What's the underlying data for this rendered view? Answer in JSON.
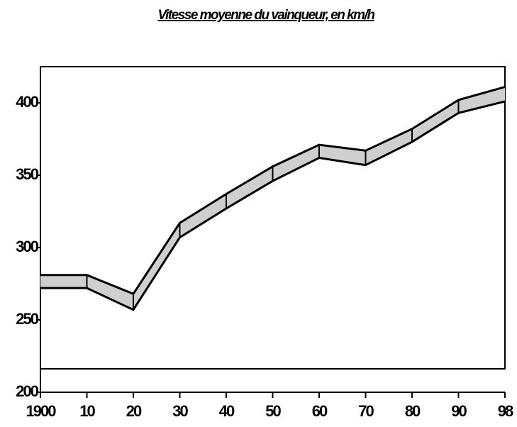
{
  "chart_data": {
    "type": "band",
    "title": "Vitesse moyenne du vainqueur, en km/h",
    "categories": [
      "1900",
      "10",
      "20",
      "30",
      "40",
      "50",
      "60",
      "70",
      "80",
      "90",
      "98"
    ],
    "series": [
      {
        "color": "#cfcfcf",
        "values": [
          281,
          281,
          268,
          317,
          337,
          356,
          371,
          367,
          382,
          402,
          411
        ]
      },
      {
        "color": "#cfcfcf",
        "values": [
          272,
          272,
          257,
          307,
          327,
          346,
          362,
          357,
          373,
          393,
          401
        ]
      }
    ],
    "ylim": [
      200,
      425
    ],
    "yticks": [
      200,
      250,
      300,
      350,
      400
    ]
  }
}
